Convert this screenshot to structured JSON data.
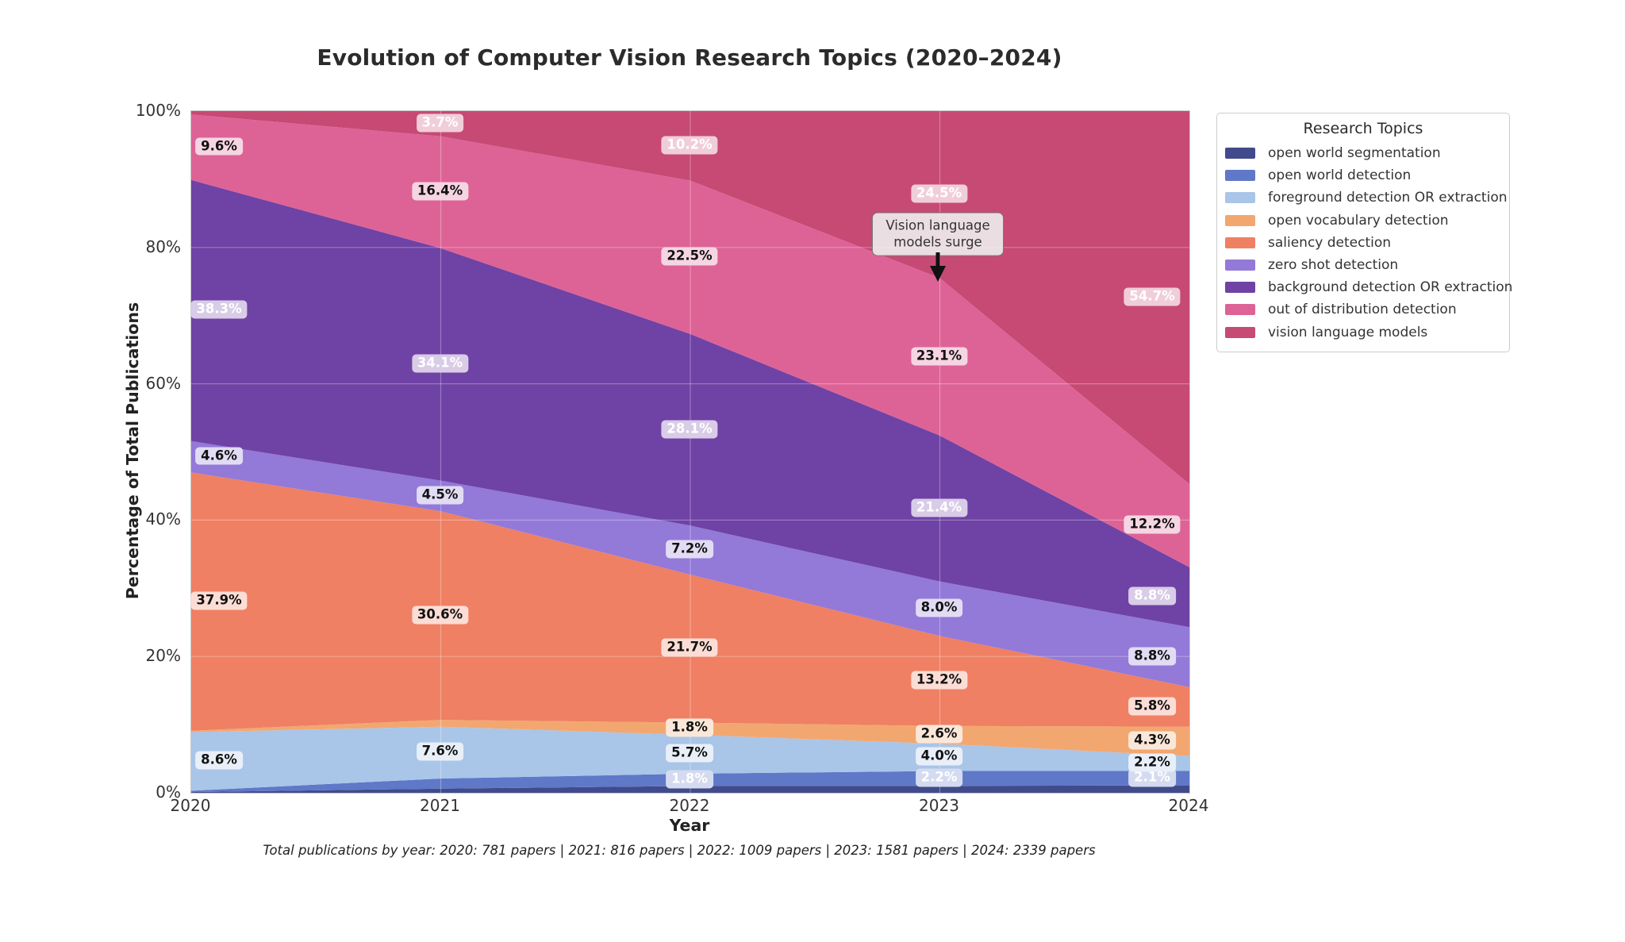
{
  "title": "Evolution of Computer Vision Research Topics (2020–2024)",
  "footnote": "Total publications by year: 2020: 781 papers | 2021: 816 papers | 2022: 1009 papers | 2023: 1581 papers | 2024: 2339 papers",
  "totals_by_year": {
    "2020": 781,
    "2021": 816,
    "2022": 1009,
    "2023": 1581,
    "2024": 2339
  },
  "chart_data": {
    "type": "area",
    "stacked": true,
    "units": "percent of total publications",
    "x_categories": [
      "2020",
      "2021",
      "2022",
      "2023",
      "2024"
    ],
    "xlabel": "Year",
    "ylabel": "Percentage of Total Publications",
    "ylim": [
      0,
      100
    ],
    "ytick_values": [
      0,
      20,
      40,
      60,
      80,
      100
    ],
    "ytick_labels": [
      "0%",
      "20%",
      "40%",
      "60%",
      "80%",
      "100%"
    ],
    "grid": true,
    "legend": {
      "title": "Research Topics",
      "position": "outside-upper-right"
    },
    "series": [
      {
        "name": "open world segmentation",
        "color": "#414b8c",
        "values": [
          0.1,
          0.6,
          1.0,
          1.0,
          1.1
        ],
        "labels": [
          null,
          null,
          null,
          null,
          null
        ],
        "label_color": "black"
      },
      {
        "name": "open world detection",
        "color": "#5f78c8",
        "values": [
          0.2,
          1.5,
          1.8,
          2.2,
          2.1
        ],
        "labels": [
          null,
          null,
          "1.8%",
          "2.2%",
          "2.1%"
        ],
        "label_color": "white"
      },
      {
        "name": "foreground detection OR extraction",
        "color": "#a9c5e8",
        "values": [
          8.6,
          7.6,
          5.7,
          4.0,
          2.2
        ],
        "labels": [
          "8.6%",
          "7.6%",
          "5.7%",
          "4.0%",
          "2.2%"
        ],
        "label_color": "black"
      },
      {
        "name": "open vocabulary detection",
        "color": "#f2a770",
        "values": [
          0.2,
          1.0,
          1.8,
          2.6,
          4.3
        ],
        "labels": [
          null,
          null,
          "1.8%",
          "2.6%",
          "4.3%"
        ],
        "label_color": "black"
      },
      {
        "name": "saliency detection",
        "color": "#ef8064",
        "values": [
          37.9,
          30.6,
          21.7,
          13.2,
          5.8
        ],
        "labels": [
          "37.9%",
          "30.6%",
          "21.7%",
          "13.2%",
          "5.8%"
        ],
        "label_color": "black"
      },
      {
        "name": "zero shot detection",
        "color": "#9379d8",
        "values": [
          4.6,
          4.5,
          7.2,
          8.0,
          8.8
        ],
        "labels": [
          "4.6%",
          "4.5%",
          "7.2%",
          "8.0%",
          "8.8%"
        ],
        "label_color": "black"
      },
      {
        "name": "background detection OR extraction",
        "color": "#6f42a5",
        "values": [
          38.3,
          34.1,
          28.1,
          21.4,
          8.8
        ],
        "labels": [
          "38.3%",
          "34.1%",
          "28.1%",
          "21.4%",
          "8.8%"
        ],
        "label_color": "white"
      },
      {
        "name": "out of distribution detection",
        "color": "#dd6396",
        "values": [
          9.6,
          16.4,
          22.5,
          23.1,
          12.2
        ],
        "labels": [
          "9.6%",
          "16.4%",
          "22.5%",
          "23.1%",
          "12.2%"
        ],
        "label_color": "black"
      },
      {
        "name": "vision language models",
        "color": "#c64a74",
        "values": [
          0.5,
          3.7,
          10.2,
          24.5,
          54.7
        ],
        "labels": [
          null,
          "3.7%",
          "10.2%",
          "24.5%",
          "54.7%"
        ],
        "label_color": "white"
      }
    ],
    "annotation": {
      "text": "Vision language models surge",
      "target_year": "2023",
      "target_percent": 75.4
    }
  }
}
